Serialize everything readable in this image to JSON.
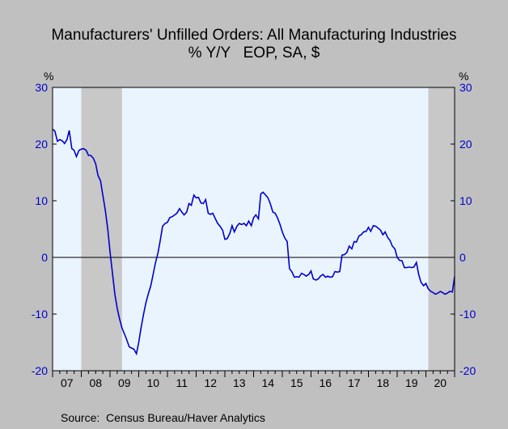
{
  "chart_data": {
    "type": "line",
    "title": "Manufacturers' Unfilled Orders: All Manufacturing Industries",
    "subtitle": "% Y/Y   EOP, SA, $",
    "ylabel_left": "%",
    "ylabel_right": "%",
    "source": "Source:  Census Bureau/Haver Analytics",
    "ylim": [
      -20,
      30
    ],
    "yticks": [
      30,
      20,
      10,
      0,
      -10,
      -20
    ],
    "xlim": [
      2007.0,
      2021.0
    ],
    "x_tick_labels": [
      "07",
      "08",
      "09",
      "10",
      "11",
      "12",
      "13",
      "14",
      "15",
      "16",
      "17",
      "18",
      "19",
      "20"
    ],
    "grid": false,
    "legend": "none",
    "recessions": [
      {
        "start": "2008-01",
        "end": "2009-06"
      },
      {
        "start": "2020-02",
        "end": "2021-02"
      }
    ],
    "colors": {
      "plot_background": "#eaf4ff",
      "recession": "#c8c8c8",
      "line": "#0000cc",
      "zero_line": "#000000",
      "tick_labels": "#0000cc"
    },
    "series": [
      {
        "x": [
          2007.0,
          2007.08,
          2007.17,
          2007.25,
          2007.33,
          2007.42,
          2007.5,
          2007.58,
          2007.67,
          2007.75,
          2007.83,
          2007.92,
          2008.0,
          2008.08,
          2008.17,
          2008.25,
          2008.33,
          2008.42,
          2008.5,
          2008.58,
          2008.67,
          2008.75,
          2008.83,
          2008.92,
          2009.0,
          2009.08,
          2009.17,
          2009.25,
          2009.33,
          2009.42,
          2009.5,
          2009.58,
          2009.67,
          2009.75,
          2009.83,
          2009.92,
          2010.0,
          2010.08,
          2010.17,
          2010.25,
          2010.33,
          2010.42,
          2010.5,
          2010.58,
          2010.67,
          2010.75,
          2010.83,
          2010.92,
          2011.0,
          2011.08,
          2011.17,
          2011.25,
          2011.33,
          2011.42,
          2011.5,
          2011.58,
          2011.67,
          2011.75,
          2011.83,
          2011.92,
          2012.0,
          2012.08,
          2012.17,
          2012.25,
          2012.33,
          2012.42,
          2012.5,
          2012.58,
          2012.67,
          2012.75,
          2012.83,
          2012.92,
          2013.0,
          2013.08,
          2013.17,
          2013.25,
          2013.33,
          2013.42,
          2013.5,
          2013.58,
          2013.67,
          2013.75,
          2013.83,
          2013.92,
          2014.0,
          2014.08,
          2014.17,
          2014.25,
          2014.33,
          2014.42,
          2014.5,
          2014.58,
          2014.67,
          2014.75,
          2014.83,
          2014.92,
          2015.0,
          2015.08,
          2015.17,
          2015.25,
          2015.33,
          2015.42,
          2015.5,
          2015.58,
          2015.67,
          2015.75,
          2015.83,
          2015.92,
          2016.0,
          2016.08,
          2016.17,
          2016.25,
          2016.33,
          2016.42,
          2016.5,
          2016.58,
          2016.67,
          2016.75,
          2016.83,
          2016.92,
          2017.0,
          2017.08,
          2017.17,
          2017.25,
          2017.33,
          2017.42,
          2017.5,
          2017.58,
          2017.67,
          2017.75,
          2017.83,
          2017.92,
          2018.0,
          2018.08,
          2018.17,
          2018.25,
          2018.33,
          2018.42,
          2018.5,
          2018.58,
          2018.67,
          2018.75,
          2018.83,
          2018.92,
          2019.0,
          2019.08,
          2019.17,
          2019.25,
          2019.33,
          2019.42,
          2019.5,
          2019.58,
          2019.67,
          2019.75,
          2019.83,
          2019.92,
          2020.0,
          2020.08,
          2020.17,
          2020.25,
          2020.33,
          2020.42,
          2020.5,
          2020.58,
          2020.67,
          2020.75,
          2020.83,
          2020.92,
          2021.0
        ],
        "values": [
          22.6,
          22.3,
          20.5,
          20.8,
          20.6,
          20.1,
          20.8,
          22.4,
          19.2,
          18.9,
          17.8,
          18.9,
          19.1,
          19.2,
          18.9,
          18.0,
          18.0,
          17.5,
          16.5,
          14.5,
          13.5,
          11.0,
          8.5,
          5.0,
          1.0,
          -2.5,
          -6.5,
          -9.0,
          -10.8,
          -12.5,
          -13.5,
          -14.5,
          -15.8,
          -16.0,
          -16.2,
          -17.0,
          -15.0,
          -12.5,
          -10.0,
          -8.0,
          -6.5,
          -5.0,
          -3.0,
          -1.0,
          0.8,
          3.0,
          5.5,
          6.0,
          6.2,
          7.0,
          7.2,
          7.5,
          7.8,
          8.6,
          8.0,
          7.5,
          8.0,
          9.5,
          9.2,
          11.0,
          10.5,
          10.6,
          9.6,
          9.5,
          10.2,
          7.8,
          7.6,
          7.8,
          6.8,
          6.0,
          5.5,
          4.8,
          3.2,
          3.3,
          4.2,
          5.6,
          4.5,
          5.5,
          6.0,
          5.8,
          6.0,
          5.6,
          6.4,
          5.6,
          7.0,
          7.5,
          6.8,
          11.2,
          11.5,
          11.0,
          10.5,
          9.5,
          8.0,
          7.8,
          7.0,
          5.8,
          4.5,
          3.5,
          2.8,
          -2.0,
          -2.5,
          -3.5,
          -3.4,
          -3.5,
          -2.8,
          -3.0,
          -3.3,
          -3.0,
          -2.4,
          -3.8,
          -4.0,
          -3.8,
          -3.3,
          -3.0,
          -3.5,
          -3.3,
          -3.5,
          -3.4,
          -2.5,
          -2.6,
          -2.5,
          0.4,
          0.5,
          0.9,
          2.0,
          1.5,
          2.8,
          2.7,
          3.8,
          4.0,
          4.5,
          4.6,
          5.3,
          4.6,
          5.6,
          5.5,
          5.2,
          4.8,
          4.0,
          4.5,
          3.5,
          3.0,
          2.0,
          1.5,
          0.0,
          -0.5,
          -0.6,
          -1.8,
          -1.8,
          -1.7,
          -1.8,
          -1.7,
          -0.9,
          -3.0,
          -4.4,
          -5.0,
          -4.6,
          -5.5,
          -6.0,
          -6.2,
          -6.5,
          -6.3,
          -6.0,
          -6.2,
          -6.5,
          -6.3,
          -6.0,
          -6.1,
          -3.4
        ]
      }
    ]
  }
}
